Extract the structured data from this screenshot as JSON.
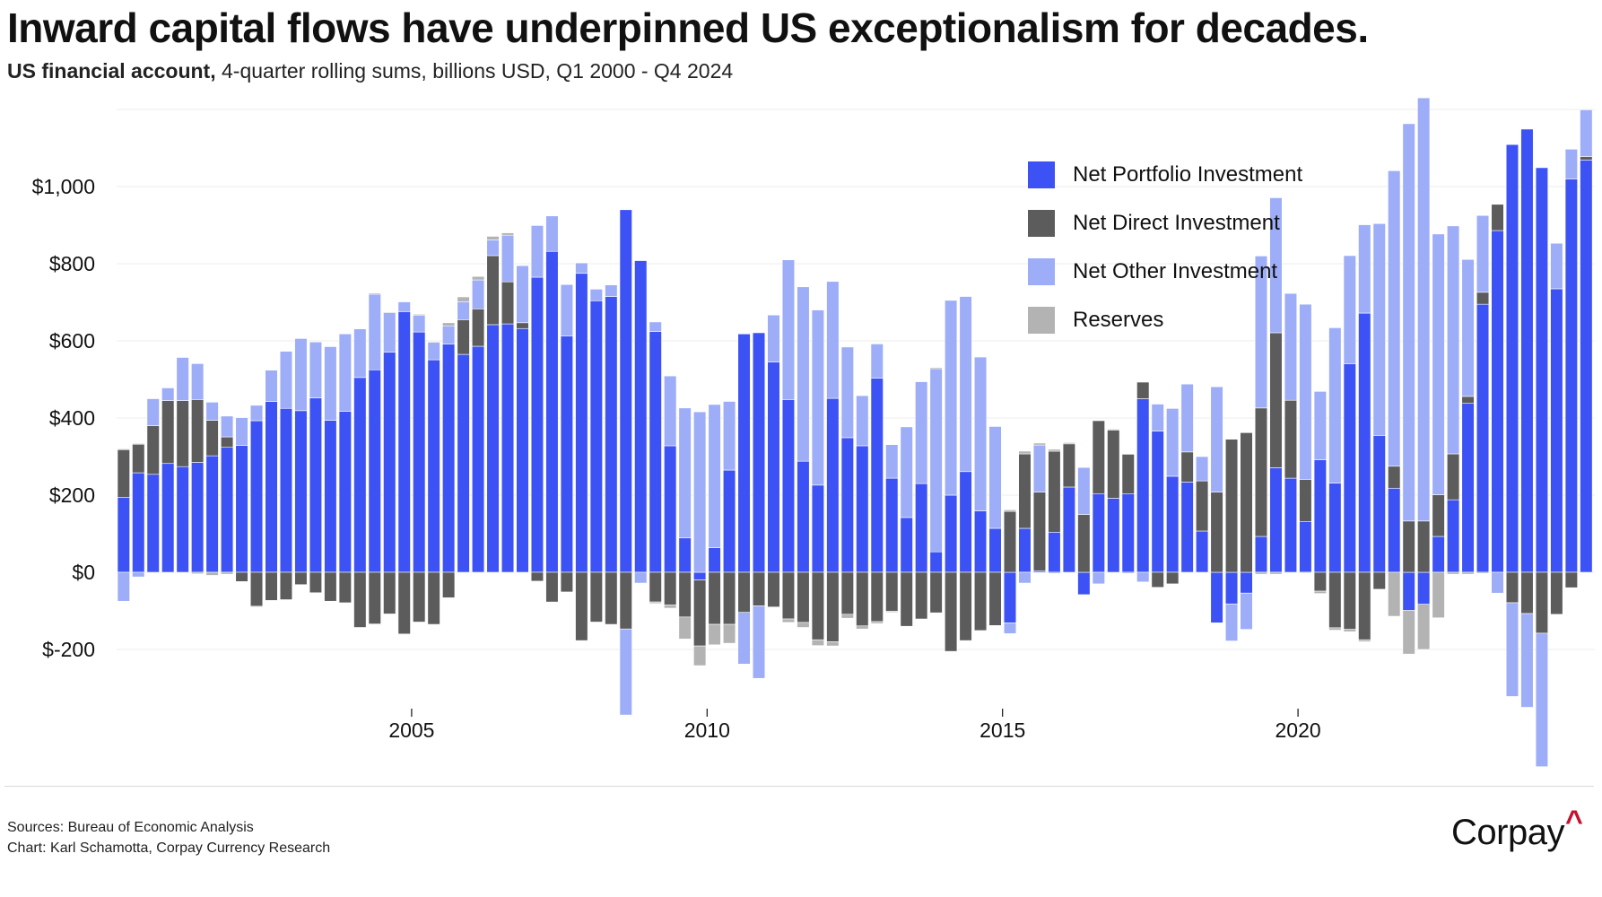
{
  "header": {
    "title": "Inward capital flows have underpinned US exceptionalism for decades.",
    "subtitle_bold": "US financial account,",
    "subtitle_rest": " 4-quarter rolling sums, billions USD, Q1 2000 - Q4 2024"
  },
  "footer": {
    "sources": "Sources: Bureau of Economic Analysis",
    "chart_credit": "Chart: Karl Schamotta, Corpay Currency Research"
  },
  "logo": {
    "text": "Corpay",
    "caret": "^",
    "caret_color": "#c8102e"
  },
  "colors": {
    "portfolio": "#3c52f5",
    "direct": "#5c5c5c",
    "other": "#9dadf7",
    "reserves": "#b3b3b3",
    "gridline": "#ececec"
  },
  "chart_data": {
    "type": "bar",
    "stacked": true,
    "title": "Inward capital flows have underpinned US exceptionalism for decades.",
    "subtitle": "US financial account, 4-quarter rolling sums, billions USD, Q1 2000 - Q4 2024",
    "xlabel": "",
    "ylabel": "",
    "ylim": [
      -350,
      1200
    ],
    "yticks": [
      -200,
      0,
      200,
      400,
      600,
      800,
      1000
    ],
    "ytick_labels": [
      "$-200",
      "$0",
      "$200",
      "$400",
      "$600",
      "$800",
      "$1,000"
    ],
    "grid": true,
    "legend_position": "top-right",
    "x_start": "Q1 2000",
    "x_end": "Q4 2024",
    "frequency": "quarterly",
    "xtick_labels": [
      {
        "label": "2005",
        "quarter_index": 20
      },
      {
        "label": "2010",
        "quarter_index": 40
      },
      {
        "label": "2015",
        "quarter_index": 60
      },
      {
        "label": "2020",
        "quarter_index": 80
      }
    ],
    "series": [
      {
        "name": "Net Portfolio Investment",
        "values": [
          194,
          258,
          254,
          282,
          274,
          285,
          302,
          324,
          329,
          393,
          443,
          425,
          419,
          452,
          394,
          417,
          505,
          525,
          571,
          676,
          623,
          551,
          592,
          565,
          586,
          642,
          644,
          632,
          765,
          832,
          613,
          775,
          704,
          715,
          940,
          808,
          624,
          328,
          89,
          -20,
          64,
          265,
          618,
          621,
          545,
          448,
          288,
          226,
          451,
          349,
          328,
          503,
          244,
          142,
          230,
          53,
          200,
          261,
          159,
          114,
          -131,
          114,
          4,
          104,
          221,
          -58,
          203,
          192,
          203,
          450,
          366,
          249,
          234,
          107,
          -131,
          -82,
          -54,
          93,
          271,
          244,
          131,
          292,
          231,
          541,
          672,
          355,
          218,
          -99,
          -83,
          93,
          188,
          438,
          695,
          886,
          1109,
          1149,
          1049,
          735,
          1020,
          1069
        ]
      },
      {
        "name": "Net Direct Investment",
        "values": [
          124,
          74,
          126,
          163,
          171,
          163,
          92,
          27,
          -24,
          -88,
          -73,
          -71,
          -32,
          -53,
          -75,
          -79,
          -143,
          -134,
          -108,
          -160,
          -129,
          -135,
          -66,
          90,
          97,
          179,
          109,
          15,
          -23,
          -77,
          -51,
          -177,
          -129,
          -135,
          -147,
          0,
          -77,
          -85,
          -116,
          -171,
          -135,
          -135,
          -104,
          -87,
          -90,
          -121,
          -130,
          -175,
          -180,
          -109,
          -139,
          -128,
          -101,
          -140,
          -121,
          -105,
          -205,
          -177,
          -151,
          -138,
          158,
          193,
          204,
          210,
          112,
          150,
          190,
          177,
          103,
          43,
          -39,
          -30,
          78,
          130,
          208,
          345,
          362,
          333,
          350,
          202,
          110,
          -49,
          -144,
          -148,
          -175,
          -44,
          57,
          133,
          133,
          108,
          119,
          18,
          31,
          68,
          -79,
          -107,
          -158,
          -109,
          -40,
          9
        ]
      },
      {
        "name": "Net Other Investment",
        "values": [
          -75,
          -12,
          70,
          33,
          112,
          93,
          47,
          54,
          72,
          40,
          81,
          148,
          187,
          145,
          191,
          201,
          126,
          196,
          102,
          25,
          43,
          45,
          47,
          46,
          75,
          41,
          121,
          148,
          134,
          92,
          133,
          27,
          30,
          30,
          -223,
          -28,
          25,
          181,
          337,
          416,
          371,
          178,
          -134,
          -188,
          122,
          362,
          452,
          454,
          303,
          235,
          130,
          89,
          87,
          235,
          264,
          475,
          505,
          454,
          399,
          264,
          -28,
          -28,
          122,
          -3,
          3,
          122,
          -30,
          2,
          -3,
          -25,
          70,
          176,
          176,
          63,
          273,
          -96,
          -94,
          394,
          350,
          277,
          454,
          177,
          403,
          280,
          229,
          549,
          766,
          1030,
          1097,
          676,
          591,
          355,
          199,
          -54,
          -243,
          -243,
          -346,
          118,
          77,
          121
        ]
      },
      {
        "name": "Reserves",
        "values": [
          2,
          2,
          0,
          0,
          0,
          -4,
          -8,
          -5,
          0,
          -2,
          0,
          0,
          0,
          0,
          0,
          0,
          0,
          3,
          2,
          0,
          3,
          2,
          8,
          13,
          9,
          9,
          6,
          0,
          0,
          1,
          0,
          0,
          0,
          0,
          0,
          0,
          -4,
          -8,
          -57,
          -51,
          -53,
          -49,
          0,
          0,
          0,
          -9,
          -13,
          -15,
          -11,
          -10,
          -8,
          -5,
          -3,
          0,
          0,
          3,
          0,
          0,
          0,
          0,
          4,
          7,
          5,
          5,
          2,
          1,
          0,
          0,
          0,
          0,
          0,
          1,
          0,
          0,
          0,
          0,
          0,
          -5,
          -5,
          0,
          -2,
          -6,
          -6,
          -6,
          -5,
          0,
          -114,
          -113,
          -117,
          -118,
          -5,
          -5,
          -3,
          0,
          0,
          0,
          0,
          0,
          0,
          0
        ]
      }
    ]
  }
}
